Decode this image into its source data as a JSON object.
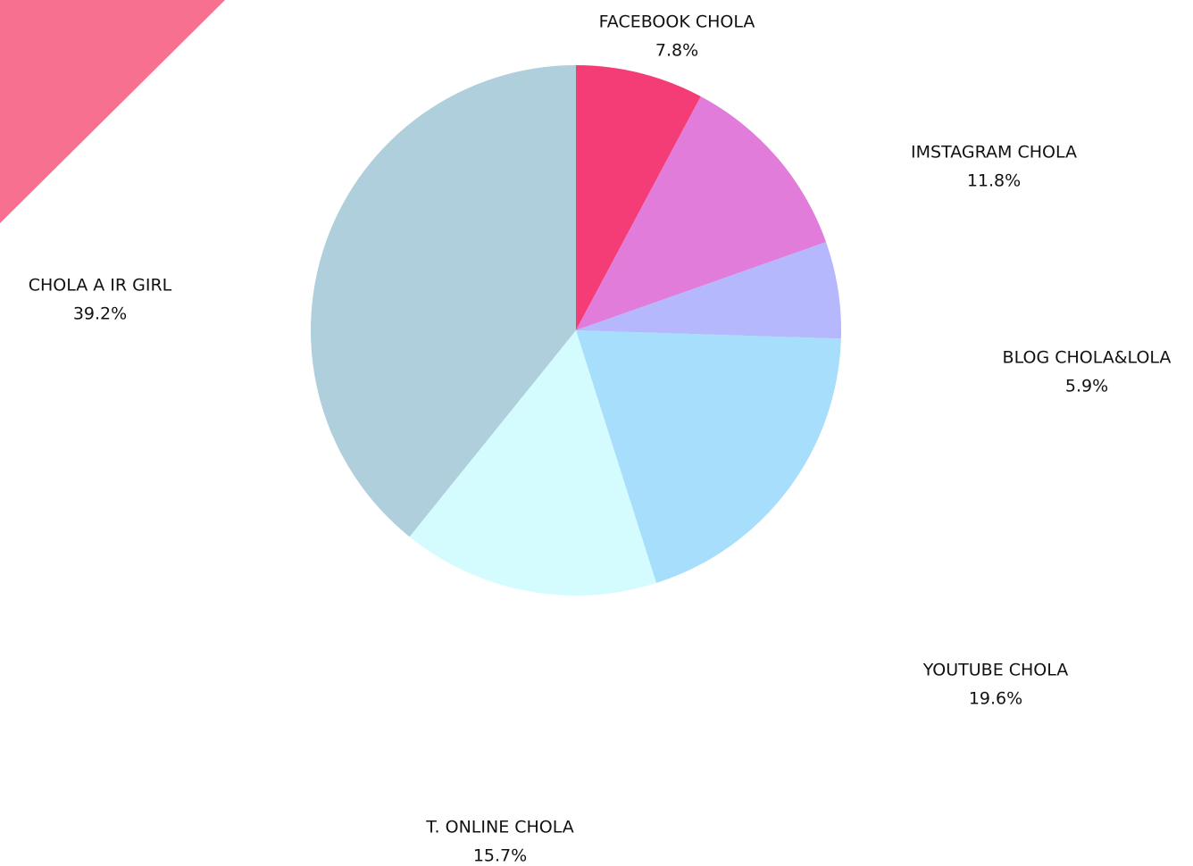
{
  "chart_data": {
    "type": "pie",
    "categories": [
      "FACEBOOK CHOLA",
      "IMSTAGRAM CHOLA",
      "BLOG CHOLA&LOLA",
      "YOUTUBE CHOLA",
      "T. ONLINE CHOLA",
      "CHOLA A IR GIRL"
    ],
    "values": [
      7.8,
      11.8,
      5.9,
      19.6,
      15.7,
      39.2
    ],
    "value_labels": [
      "7.8%",
      "11.8%",
      "5.9%",
      "19.6%",
      "15.7%",
      "39.2%"
    ],
    "colors": [
      "#f43d76",
      "#e27cda",
      "#b5b8fd",
      "#a6defc",
      "#d4fbfe",
      "#aecfdb"
    ]
  }
}
